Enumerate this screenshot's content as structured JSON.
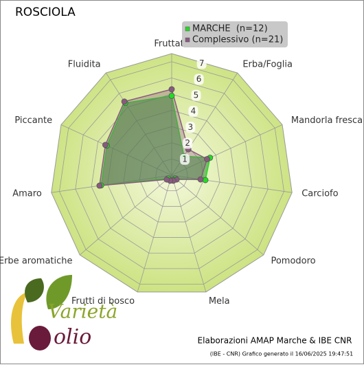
{
  "chart_data": {
    "type": "radar",
    "title": "ROSCIOLA",
    "categories": [
      "Fruttato",
      "Erba/Foglia",
      "Mandorla fresca",
      "Carciofo",
      "Pomodoro",
      "Mela",
      "Frutti di bosco",
      "Erbe aromatiche",
      "Amaro",
      "Piccante",
      "Fluidita"
    ],
    "series": [
      {
        "name": "MARCHE  (n=12)",
        "color": "#22dd22",
        "values": [
          4.9,
          1.4,
          2.6,
          2.1,
          0.3,
          0.3,
          0.3,
          0.3,
          4.4,
          4.4,
          5.3
        ]
      },
      {
        "name": "Complessivo (n=21)",
        "color": "#8a5a7e",
        "values": [
          5.3,
          1.9,
          2.4,
          1.8,
          0.4,
          0.35,
          0.35,
          0.4,
          4.5,
          4.5,
          5.4
        ]
      }
    ],
    "rlim": [
      0,
      7.5
    ],
    "rticks": [
      1,
      2,
      3,
      4,
      5,
      6,
      7
    ],
    "footer": "Elaborazioni AMAP Marche & IBE CNR",
    "footnote": "(IBE - CNR) Grafico generato il 16/06/2025 19:47:51",
    "logo": [
      "Varietà",
      "olio"
    ]
  }
}
